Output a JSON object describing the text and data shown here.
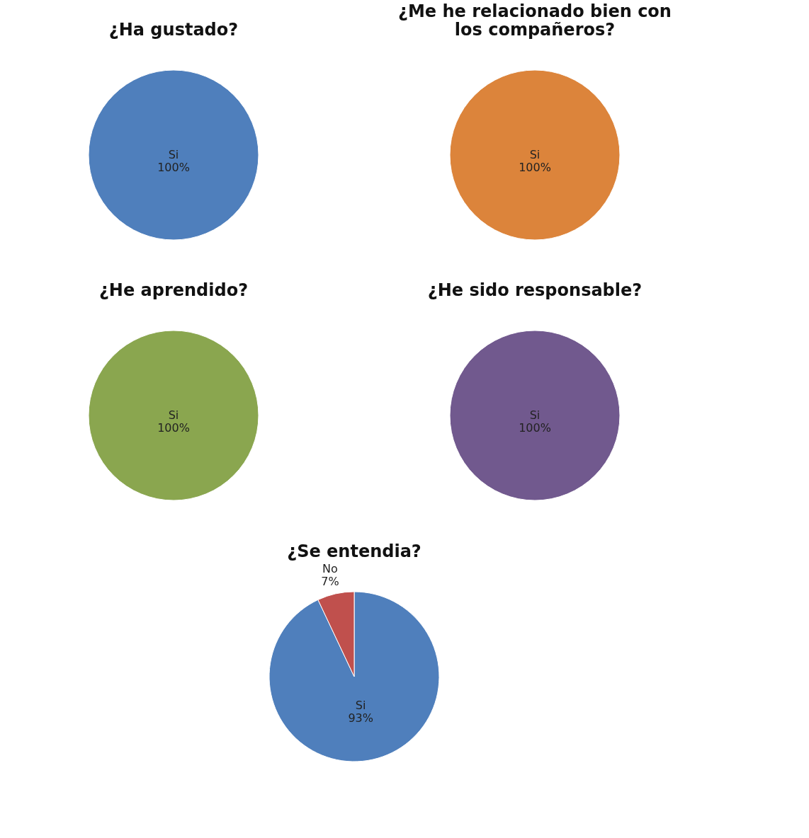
{
  "chart_data": [
    {
      "type": "pie",
      "title": "¿Ha gustado?",
      "categories": [
        "Si"
      ],
      "values": [
        100
      ],
      "colors": [
        "#4f7fbc"
      ],
      "value_labels": [
        "100%"
      ]
    },
    {
      "type": "pie",
      "title": "¿Me he relacionado bien con los compañeros?",
      "categories": [
        "Si"
      ],
      "values": [
        100
      ],
      "colors": [
        "#dc843b"
      ],
      "value_labels": [
        "100%"
      ]
    },
    {
      "type": "pie",
      "title": "¿He aprendido?",
      "categories": [
        "Si"
      ],
      "values": [
        100
      ],
      "colors": [
        "#8aa64f"
      ],
      "value_labels": [
        "100%"
      ]
    },
    {
      "type": "pie",
      "title": "¿He sido responsable?",
      "categories": [
        "Si"
      ],
      "values": [
        100
      ],
      "colors": [
        "#71598e"
      ],
      "value_labels": [
        "100%"
      ]
    },
    {
      "type": "pie",
      "title": "¿Se entendia?",
      "categories": [
        "Si",
        "No"
      ],
      "values": [
        93,
        7
      ],
      "colors": [
        "#4f7fbc",
        "#c0504d"
      ],
      "value_labels": [
        "93%",
        "7%"
      ]
    }
  ]
}
